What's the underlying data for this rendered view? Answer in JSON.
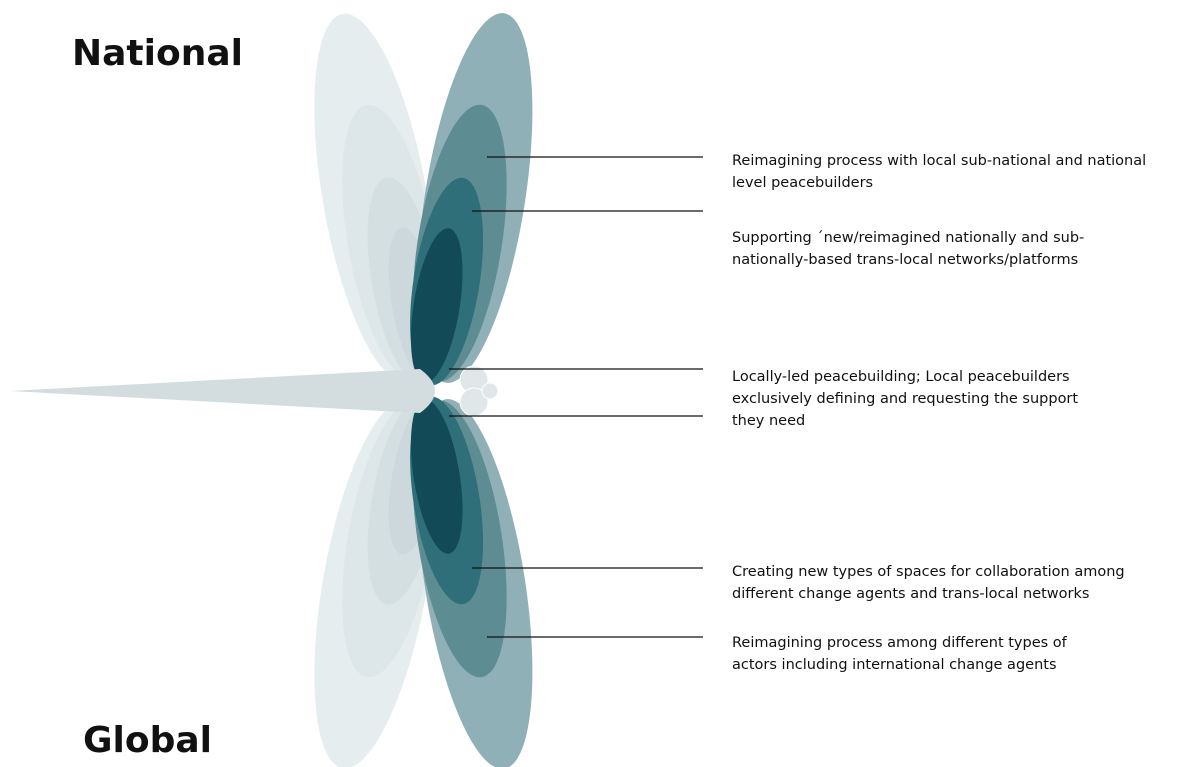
{
  "heading_top": "National",
  "heading_bottom": "Global",
  "labels": [
    {
      "lines": [
        "Reimagining process with local sub-national and national",
        "level peacebuilders"
      ]
    },
    {
      "lines": [
        "Supporting ´new/reimagined nationally and sub-",
        "nationally-based trans-local networks/platforms"
      ]
    },
    {
      "lines": [
        "Locally-led peacebuilding; Local peacebuilders",
        "exclusively defining and requesting the support",
        "they need"
      ]
    },
    {
      "lines": [
        "Creating new types of spaces for collaboration among",
        "different change agents and trans-local networks"
      ]
    },
    {
      "lines": [
        "Reimagining process among different types of",
        "actors including international change agents"
      ]
    }
  ]
}
